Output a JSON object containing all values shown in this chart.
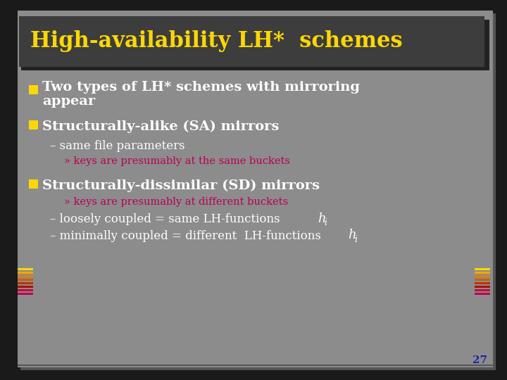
{
  "title": "High-availability LH*  schemes",
  "title_color": "#FFD700",
  "title_bg_color": "#3d3d3d",
  "slide_bg_color": "#8c8c8c",
  "outer_bg_color": "#1a1a1a",
  "bullet_color": "#FFD700",
  "text_color": "#FFFFFF",
  "magenta_color": "#bb0055",
  "blue_number_color": "#2222aa",
  "bullet1_line1": "Two types of LH* schemes with mirroring",
  "bullet1_line2": "appear",
  "bullet2": "Structurally-alike (SA) mirrors",
  "dash1": "– same file parameters",
  "sub1": "» keys are presumably at the same buckets",
  "bullet3": "Structurally-dissimilar (SD) mirrors",
  "sub2": "» keys are presumably at different buckets",
  "dash2_main": "– loosely coupled = same LH-functions ",
  "dash3_main": "– minimally coupled = different  LH-functions ",
  "hi_italic": "h",
  "hi_sub": "i",
  "page_number": "27",
  "stripe_colors": [
    "#FFD700",
    "#f0a800",
    "#e08000",
    "#cc6000",
    "#bb3300",
    "#aa1100",
    "#cc0033",
    "#bb0055"
  ],
  "font_family": "DejaVu Serif"
}
